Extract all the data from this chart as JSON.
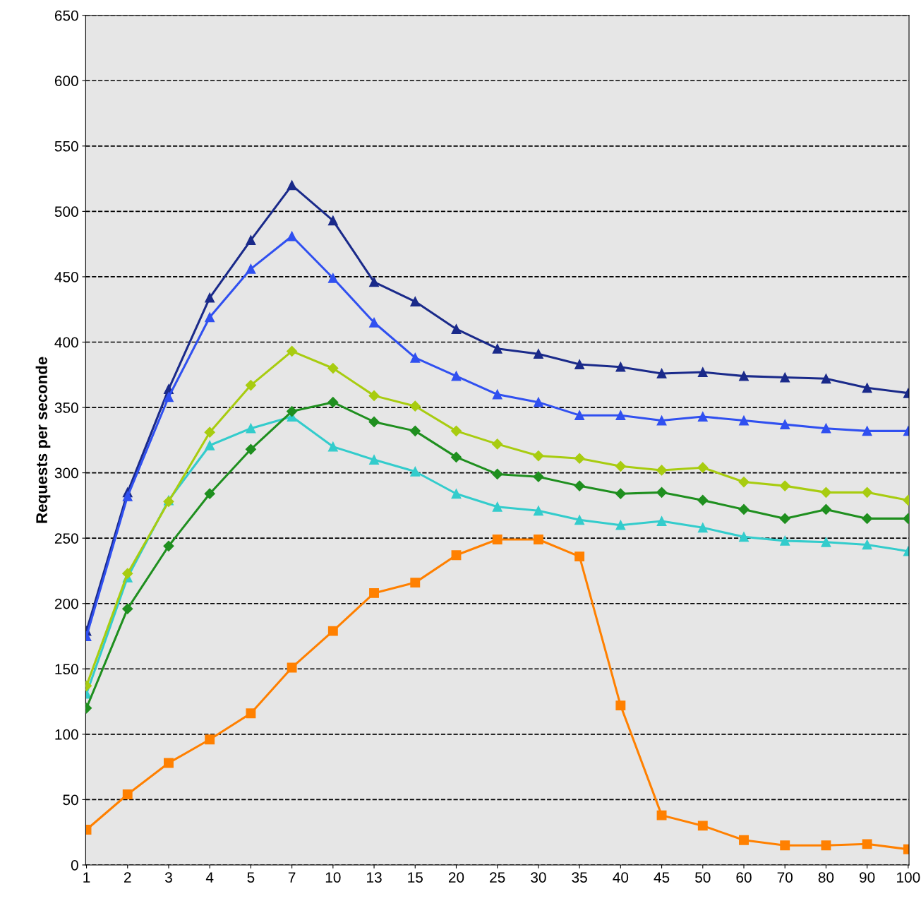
{
  "chart_data": {
    "type": "line",
    "ylabel": "Requests per seconde",
    "categories": [
      "1",
      "2",
      "3",
      "4",
      "5",
      "7",
      "10",
      "13",
      "15",
      "20",
      "25",
      "30",
      "35",
      "40",
      "45",
      "50",
      "60",
      "70",
      "80",
      "90",
      "100"
    ],
    "ylim": [
      0,
      650
    ],
    "yticks": [
      0,
      50,
      100,
      150,
      200,
      250,
      300,
      350,
      400,
      450,
      500,
      550,
      600,
      650
    ],
    "grid": "y",
    "line_style": "solid",
    "series": [
      {
        "color": "#1a2a8a",
        "marker": "triangle",
        "values": [
          179,
          285,
          364,
          434,
          478,
          520,
          493,
          446,
          431,
          410,
          395,
          391,
          383,
          381,
          376,
          377,
          374,
          373,
          372,
          365,
          361
        ]
      },
      {
        "color": "#3050f0",
        "marker": "triangle",
        "values": [
          175,
          282,
          358,
          419,
          456,
          481,
          449,
          415,
          388,
          374,
          360,
          354,
          344,
          344,
          340,
          343,
          340,
          337,
          334,
          332,
          332
        ]
      },
      {
        "color": "#a8cc10",
        "marker": "diamond",
        "values": [
          137,
          223,
          278,
          331,
          367,
          393,
          380,
          359,
          351,
          332,
          322,
          313,
          311,
          305,
          302,
          304,
          293,
          290,
          285,
          285,
          279
        ]
      },
      {
        "color": "#1f8f1f",
        "marker": "diamond",
        "values": [
          120,
          196,
          244,
          284,
          318,
          347,
          354,
          339,
          332,
          312,
          299,
          297,
          290,
          284,
          285,
          279,
          272,
          265,
          272,
          265,
          265
        ]
      },
      {
        "color": "#33cccc",
        "marker": "triangle",
        "values": [
          131,
          220,
          279,
          321,
          334,
          343,
          320,
          310,
          301,
          284,
          274,
          271,
          264,
          260,
          263,
          258,
          251,
          248,
          247,
          245,
          240
        ]
      },
      {
        "color": "#ff8000",
        "marker": "square",
        "values": [
          27,
          54,
          78,
          96,
          116,
          151,
          179,
          208,
          216,
          237,
          249,
          249,
          236,
          122,
          38,
          30,
          19,
          15,
          15,
          16,
          12
        ]
      }
    ]
  }
}
